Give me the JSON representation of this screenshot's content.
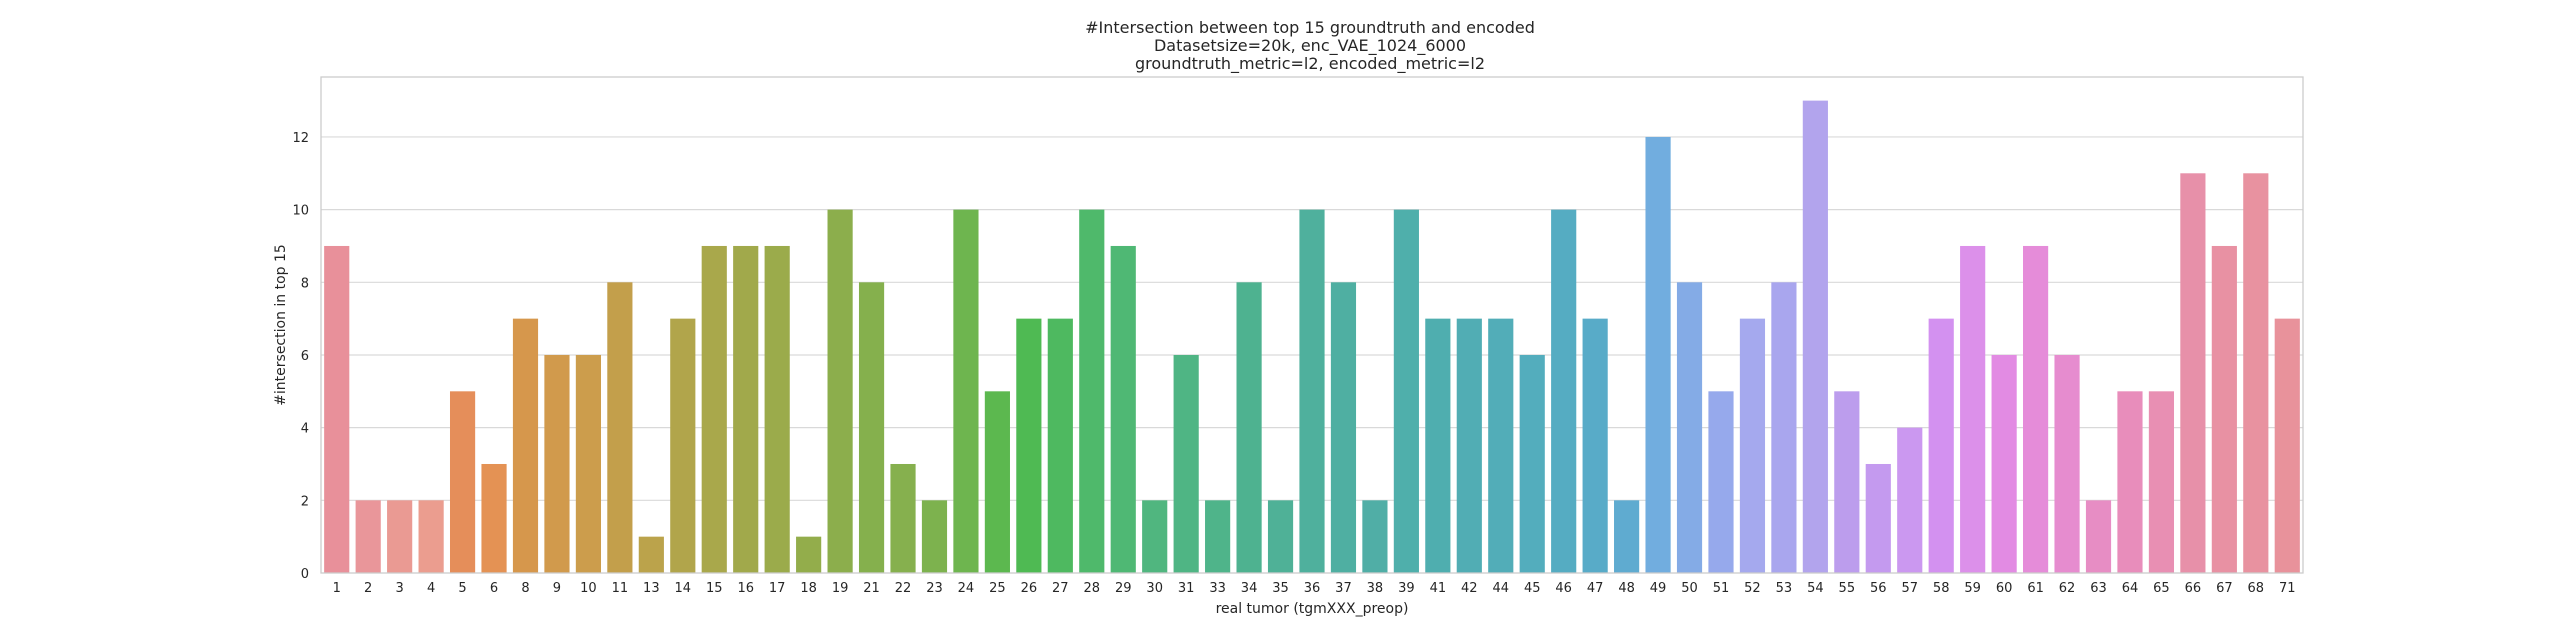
{
  "chart_data": {
    "type": "bar",
    "title_lines": [
      "#Intersection between top 15 groundtruth and encoded",
      "Datasetsize=20k, enc_VAE_1024_6000",
      "groundtruth_metric=l2, encoded_metric=l2"
    ],
    "xlabel": "real tumor (tgmXXX_preop)",
    "ylabel": "#intersection in top 15",
    "ylim": [
      0,
      13.65
    ],
    "yticks": [
      0,
      2,
      4,
      6,
      8,
      10,
      12
    ],
    "grid": true,
    "categories": [
      "1",
      "2",
      "3",
      "4",
      "5",
      "6",
      "8",
      "9",
      "10",
      "11",
      "13",
      "14",
      "15",
      "16",
      "17",
      "18",
      "19",
      "21",
      "22",
      "23",
      "24",
      "25",
      "26",
      "27",
      "28",
      "29",
      "30",
      "31",
      "33",
      "34",
      "35",
      "36",
      "37",
      "38",
      "39",
      "41",
      "42",
      "44",
      "45",
      "46",
      "47",
      "48",
      "49",
      "50",
      "51",
      "52",
      "53",
      "54",
      "55",
      "56",
      "57",
      "58",
      "59",
      "60",
      "61",
      "62",
      "63",
      "64",
      "65",
      "66",
      "67",
      "68",
      "71"
    ],
    "values": [
      9,
      2,
      2,
      2,
      5,
      3,
      7,
      6,
      6,
      8,
      1,
      7,
      9,
      9,
      9,
      1,
      10,
      8,
      3,
      2,
      10,
      5,
      7,
      7,
      10,
      9,
      2,
      6,
      2,
      8,
      2,
      10,
      8,
      2,
      10,
      7,
      7,
      7,
      6,
      10,
      7,
      2,
      12,
      8,
      5,
      7,
      8,
      13,
      5,
      3,
      4,
      7,
      9,
      6,
      9,
      6,
      2,
      5,
      5,
      11,
      9,
      11,
      7
    ],
    "colors": [
      "#e8909a",
      "#e9969a",
      "#ea9a93",
      "#eb9d8f",
      "#e58e5a",
      "#e49254",
      "#d6974c",
      "#d19a4c",
      "#cc9d4c",
      "#c39f4b",
      "#bba34b",
      "#b1a54b",
      "#a9a84b",
      "#a1a94b",
      "#9bab4b",
      "#93ad4b",
      "#8cae4c",
      "#85b04d",
      "#86b04e",
      "#7db24e",
      "#6eb54f",
      "#5cb84f",
      "#4fba53",
      "#4eb960",
      "#4fb96b",
      "#4fb874",
      "#50b67f",
      "#4fb584",
      "#4fb48a",
      "#4eb290",
      "#4fb197",
      "#4fb09d",
      "#4fafa2",
      "#50aea6",
      "#4fafab",
      "#4faeaf",
      "#51adb4",
      "#52adb8",
      "#53adbd",
      "#55acc2",
      "#58abc8",
      "#5fabd0",
      "#71addf",
      "#84abe6",
      "#96a9ec",
      "#a5a9ee",
      "#a9a6ee",
      "#b2a4ed",
      "#bc9ded",
      "#c49aef",
      "#cb98f0",
      "#d391f0",
      "#dc90ea",
      "#e28be3",
      "#e58cd9",
      "#e68ccf",
      "#e78dc4",
      "#e88dbb",
      "#e88fb3",
      "#e790a9",
      "#e891a3",
      "#e892a0",
      "#e8929b"
    ]
  }
}
